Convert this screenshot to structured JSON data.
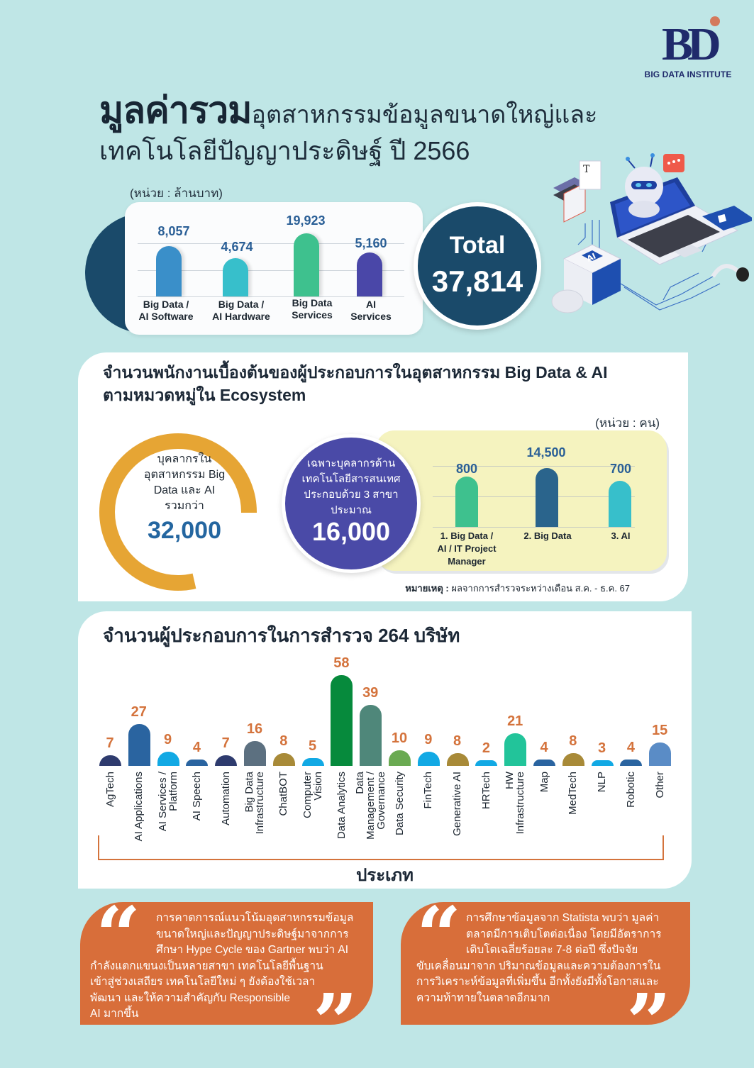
{
  "logo": {
    "mark": "BD",
    "name": "BIG DATA INSTITUTE",
    "accent": "#d47a5c",
    "color": "#1f2a6b"
  },
  "title": {
    "bold": "มูลค่ารวม",
    "rest_line1": "อุตสาหกรรมข้อมูลขนาดใหญ่และ",
    "line2": "เทคโนโลยีปัญญาประดิษฐ์ ปี 2566"
  },
  "section1": {
    "unit": "(หน่วย : ล้านบาท)",
    "bars": [
      {
        "value": "8,057",
        "label_line1": "Big Data /",
        "label_line2": "AI Software",
        "color": "#3a8fc9"
      },
      {
        "value": "4,674",
        "label_line1": "Big Data /",
        "label_line2": "AI Hardware",
        "color": "#37bfcb"
      },
      {
        "value": "19,923",
        "label_line1": "Big Data",
        "label_line2": "Services",
        "color": "#3ec18e"
      },
      {
        "value": "5,160",
        "label_line1": "AI",
        "label_line2": "Services",
        "color": "#4a47a8"
      }
    ],
    "total_label": "Total",
    "total_value": "37,814"
  },
  "section2": {
    "title_line1": "จำนวนพนักงานเบื้องต้นของผู้ประกอบการในอุตสาหกรรม Big Data & AI",
    "title_line2": "ตามหมวดหมู่ใน Ecosystem",
    "unit": "(หน่วย : คน)",
    "ring": {
      "text_line1": "บุคลากรใน",
      "text_line2": "อุตสาหกรรม Big",
      "text_line3": "Data และ AI",
      "text_line4": "รวมกว่า",
      "value": "32,000"
    },
    "circle": {
      "text_line1": "เฉพาะบุคลากรด้าน",
      "text_line2": "เทคโนโลยีสารสนเทศ",
      "text_line3": "ประกอบด้วย 3 สาขา",
      "text_line4": "ประมาณ",
      "value": "16,000"
    },
    "bars": [
      {
        "value": "800",
        "label_line1": "1.  Big Data /",
        "label_line2": "AI / IT Project",
        "label_line3": "Manager",
        "color": "#3ec18e"
      },
      {
        "value": "14,500",
        "label_line1": "2.  Big Data",
        "label_line2": "",
        "label_line3": "",
        "color": "#2a648c"
      },
      {
        "value": "700",
        "label_line1": "3.  AI",
        "label_line2": "",
        "label_line3": "",
        "color": "#37bfcb"
      }
    ],
    "footnote_bold": "หมายเหตุ :",
    "footnote_text": " ผลจากการสำรวจระหว่างเดือน  ส.ค. - ธ.ค. 67"
  },
  "section3": {
    "title": "จำนวนผู้ประกอบการในการสำรวจ 264 บริษัท",
    "x_axis_title": "ประเภท",
    "bars": [
      {
        "label": "AgTech",
        "value": "7",
        "color": "#2e3b6e"
      },
      {
        "label": "AI Applications",
        "value": "27",
        "color": "#2a64a0"
      },
      {
        "label": "AI Services / Platform",
        "value": "9",
        "color": "#12a9e4"
      },
      {
        "label": "AI Speech",
        "value": "4",
        "color": "#2a64a0"
      },
      {
        "label": "Automation",
        "value": "7",
        "color": "#2e3b6e"
      },
      {
        "label": "Big Data Infrastructure",
        "value": "16",
        "color": "#5c7080"
      },
      {
        "label": "ChatBOT",
        "value": "8",
        "color": "#a88a38"
      },
      {
        "label": "Computer Vision",
        "value": "5",
        "color": "#12a9e4"
      },
      {
        "label": "Data Analytics",
        "value": "58",
        "color": "#068a3c"
      },
      {
        "label": "Data Management / Governance",
        "value": "39",
        "color": "#4f877a"
      },
      {
        "label": "Data Security",
        "value": "10",
        "color": "#6aaa52"
      },
      {
        "label": "FinTech",
        "value": "9",
        "color": "#12a9e4"
      },
      {
        "label": "Generative AI",
        "value": "8",
        "color": "#a88a38"
      },
      {
        "label": "HRTech",
        "value": "2",
        "color": "#12a9e4"
      },
      {
        "label": "HW Infrastructure",
        "value": "21",
        "color": "#22c49a"
      },
      {
        "label": "Map",
        "value": "4",
        "color": "#2a64a0"
      },
      {
        "label": "MedTech",
        "value": "8",
        "color": "#a88a38"
      },
      {
        "label": "NLP",
        "value": "3",
        "color": "#12a9e4"
      },
      {
        "label": "Robotic",
        "value": "4",
        "color": "#2a64a0"
      },
      {
        "label": "Other",
        "value": "15",
        "color": "#5a8cc6"
      }
    ]
  },
  "quotes": {
    "left": {
      "lines_indented": [
        "การคาดการณ์แนวโน้มอุตสาหกรรมข้อมูล",
        "ขนาดใหญ่และปัญญาประดิษฐ์มาจากการ",
        "ศึกษา Hype Cycle ของ Gartner พบว่า AI"
      ],
      "lines_full": [
        "กำลังแตกแขนงเป็นหลายสาขา  เทคโนโลยีพื้นฐาน",
        "เข้าสู่ช่วงเสถียร  เทคโนโลยีใหม่ ๆ ยังต้องใช้เวลา",
        "พัฒนา และให้ความสำคัญกับ Responsible",
        "AI มากขึ้น"
      ]
    },
    "right": {
      "lines_indented": [
        "การศึกษาข้อมูลจาก Statista พบว่า มูลค่า",
        "ตลาดมีการเติบโตต่อเนื่อง โดยมีอัตราการ",
        "เติบโตเฉลี่ยร้อยละ 7-8 ต่อปี ซึ่งปัจจัย"
      ],
      "lines_full": [
        "ขับเคลื่อนมาจาก ปริมาณข้อมูลและความต้องการใน",
        "การวิเคราะห์ข้อมูลที่เพิ่มขึ้น อีกทั้งยังมีทั้งโอกาสและ",
        "ความท้าทายในตลาดอีกมาก"
      ]
    },
    "open_mark": "“",
    "close_mark": "”"
  },
  "chart_data": [
    {
      "type": "bar",
      "title": "มูลค่ารวมอุตสาหกรรมข้อมูลขนาดใหญ่และเทคโนโลยีปัญญาประดิษฐ์ ปี 2566",
      "unit": "ล้านบาท",
      "categories": [
        "Big Data / AI Software",
        "Big Data / AI Hardware",
        "Big Data Services",
        "AI Services"
      ],
      "values": [
        8057,
        4674,
        19923,
        5160
      ],
      "total": 37814,
      "xlabel": "",
      "ylabel": "",
      "grid": true
    },
    {
      "type": "bar",
      "title": "จำนวนพนักงานเบื้องต้นของผู้ประกอบการในอุตสาหกรรม Big Data & AI ตามหมวดหมู่ใน Ecosystem",
      "unit": "คน",
      "categories": [
        "Big Data / AI / IT Project Manager",
        "Big Data",
        "AI"
      ],
      "values": [
        800,
        14500,
        700
      ],
      "annotations": [
        "บุคลากรในอุตสาหกรรม Big Data และ AI รวมกว่า 32,000",
        "เฉพาะบุคลากรด้านเทคโนโลยีสารสนเทศ ประกอบด้วย 3 สาขา ประมาณ 16,000"
      ],
      "grid": true
    },
    {
      "type": "bar",
      "title": "จำนวนผู้ประกอบการในการสำรวจ 264 บริษัท",
      "xlabel": "ประเภท",
      "ylabel": "",
      "categories": [
        "AgTech",
        "AI Applications",
        "AI Services / Platform",
        "AI Speech",
        "Automation",
        "Big Data Infrastructure",
        "ChatBOT",
        "Computer Vision",
        "Data Analytics",
        "Data Management / Governance",
        "Data Security",
        "FinTech",
        "Generative AI",
        "HRTech",
        "HW Infrastructure",
        "Map",
        "MedTech",
        "NLP",
        "Robotic",
        "Other"
      ],
      "values": [
        7,
        27,
        9,
        4,
        7,
        16,
        8,
        5,
        58,
        39,
        10,
        9,
        8,
        2,
        21,
        4,
        8,
        3,
        4,
        15
      ],
      "grid": false
    }
  ]
}
